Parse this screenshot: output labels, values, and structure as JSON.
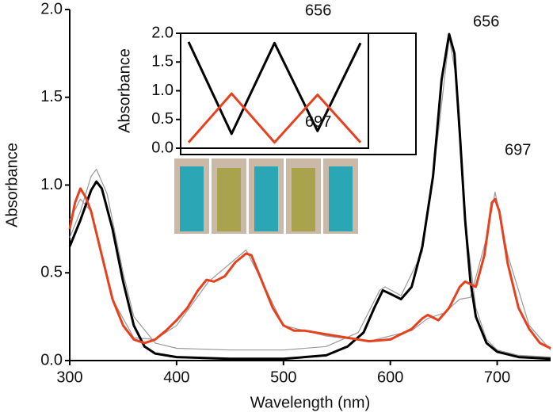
{
  "chart_data": [
    {
      "type": "line",
      "x_label": "Wavelength (nm)",
      "y_label": "Absorbance",
      "xlim": [
        300,
        750
      ],
      "ylim": [
        0,
        2.0
      ],
      "xticks": [
        300,
        400,
        500,
        600,
        700
      ],
      "yticks": [
        {
          "value": 0,
          "label": "0.0"
        },
        0.5,
        {
          "value": 1,
          "label": "1.0"
        },
        1.5,
        {
          "value": 2,
          "label": "2.0"
        }
      ],
      "annotations": [
        "656",
        "697"
      ],
      "series": [
        {
          "color": "#9a9a9a",
          "x": [
            300,
            310,
            320,
            325,
            335,
            350,
            360,
            380,
            400,
            450,
            500,
            540,
            570,
            590,
            595,
            610,
            630,
            645,
            655,
            662,
            670,
            680,
            690,
            700,
            720,
            750
          ],
          "values": [
            0.7,
            0.85,
            1.05,
            1.09,
            0.95,
            0.5,
            0.25,
            0.1,
            0.07,
            0.06,
            0.06,
            0.08,
            0.16,
            0.4,
            0.42,
            0.37,
            0.62,
            1.3,
            1.84,
            1.6,
            0.8,
            0.3,
            0.12,
            0.06,
            0.03,
            0.02
          ]
        },
        {
          "color": "#9a9a9a",
          "x": [
            300,
            310,
            320,
            340,
            360,
            380,
            400,
            430,
            465,
            480,
            500,
            540,
            580,
            620,
            635,
            650,
            665,
            675,
            690,
            698,
            710,
            730,
            750
          ],
          "values": [
            0.8,
            0.92,
            0.85,
            0.35,
            0.13,
            0.12,
            0.2,
            0.45,
            0.63,
            0.45,
            0.2,
            0.14,
            0.11,
            0.17,
            0.24,
            0.27,
            0.35,
            0.36,
            0.7,
            0.96,
            0.6,
            0.2,
            0.06
          ]
        },
        {
          "color": "#000000",
          "x": [
            300,
            310,
            320,
            325,
            330,
            340,
            350,
            360,
            370,
            380,
            400,
            450,
            500,
            540,
            560,
            575,
            585,
            593,
            600,
            610,
            620,
            630,
            640,
            648,
            655,
            660,
            665,
            670,
            675,
            680,
            690,
            700,
            720,
            750
          ],
          "values": [
            0.65,
            0.8,
            0.97,
            1.02,
            0.98,
            0.75,
            0.45,
            0.2,
            0.08,
            0.04,
            0.02,
            0.01,
            0.01,
            0.03,
            0.08,
            0.16,
            0.3,
            0.4,
            0.38,
            0.35,
            0.42,
            0.65,
            1.05,
            1.6,
            1.86,
            1.75,
            1.3,
            0.8,
            0.45,
            0.25,
            0.1,
            0.05,
            0.02,
            0.01
          ]
        },
        {
          "color": "#e8401c",
          "x": [
            300,
            305,
            310,
            315,
            320,
            330,
            340,
            350,
            360,
            370,
            380,
            390,
            400,
            410,
            420,
            428,
            435,
            445,
            455,
            465,
            470,
            480,
            490,
            500,
            510,
            520,
            540,
            560,
            580,
            600,
            620,
            630,
            635,
            645,
            655,
            665,
            670,
            680,
            688,
            695,
            698,
            702,
            710,
            720,
            730,
            740,
            750
          ],
          "values": [
            0.75,
            0.9,
            0.98,
            0.93,
            0.85,
            0.6,
            0.35,
            0.2,
            0.12,
            0.1,
            0.12,
            0.17,
            0.23,
            0.3,
            0.4,
            0.46,
            0.45,
            0.48,
            0.56,
            0.61,
            0.6,
            0.45,
            0.3,
            0.2,
            0.17,
            0.17,
            0.15,
            0.13,
            0.11,
            0.12,
            0.18,
            0.24,
            0.26,
            0.23,
            0.3,
            0.42,
            0.45,
            0.42,
            0.6,
            0.9,
            0.92,
            0.85,
            0.55,
            0.3,
            0.18,
            0.1,
            0.07
          ]
        }
      ]
    },
    {
      "type": "line",
      "y_label": "Absorbance",
      "ylim": [
        0,
        2.0
      ],
      "yticks": [
        {
          "value": 0,
          "label": "0.0"
        },
        0.5,
        {
          "value": 1,
          "label": "1.0"
        },
        1.5,
        {
          "value": 2,
          "label": "2.0"
        }
      ],
      "categories": [
        null,
        null,
        null,
        null,
        null
      ],
      "series": [
        {
          "name": "656",
          "color": "#000000",
          "values": [
            1.85,
            0.25,
            1.83,
            0.3,
            1.83
          ]
        },
        {
          "name": "697",
          "color": "#e8401c",
          "values": [
            0.1,
            0.95,
            0.1,
            0.93,
            0.1
          ]
        }
      ]
    }
  ]
}
